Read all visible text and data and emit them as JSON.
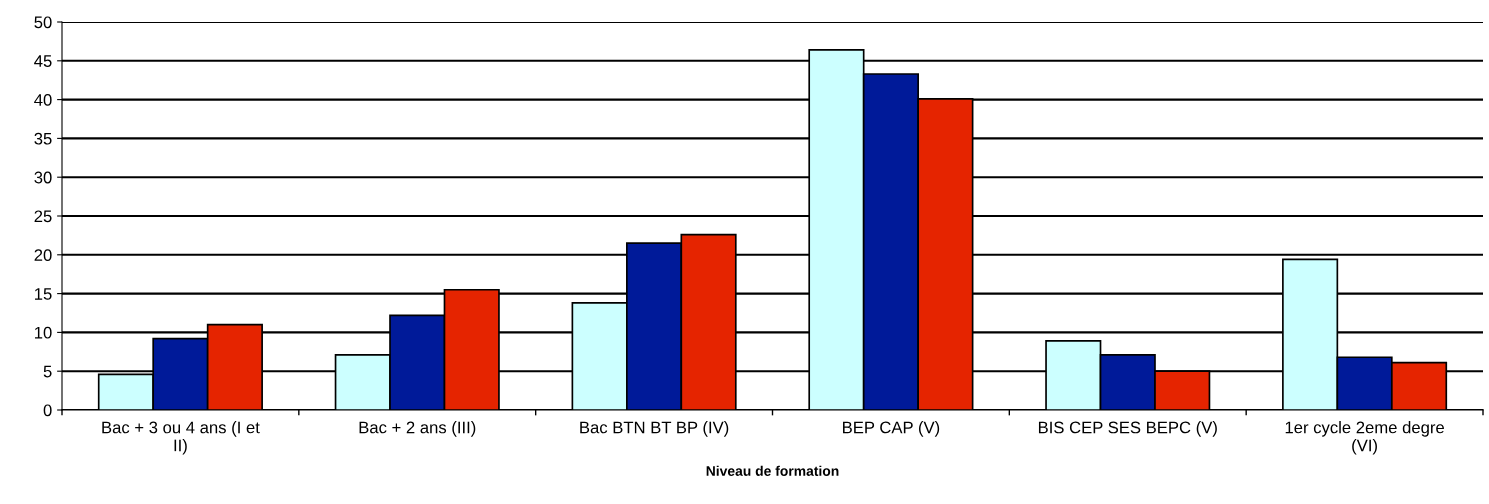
{
  "chart_data": {
    "type": "bar",
    "xlabel": "Niveau de formation",
    "categories": [
      "Bac + 3 ou 4 ans (I et II)",
      "Bac + 2 ans (III)",
      "Bac BTN BT BP (IV)",
      "BEP CAP (V)",
      "BIS CEP SES BEPC (V)",
      "1er cycle 2eme degre (VI)"
    ],
    "series": [
      {
        "color": "#ccffff",
        "values": [
          4.6,
          7.1,
          13.8,
          46.4,
          8.9,
          19.4
        ]
      },
      {
        "color": "#001a99",
        "values": [
          9.2,
          12.2,
          21.5,
          43.3,
          7.1,
          6.8
        ]
      },
      {
        "color": "#e52400",
        "values": [
          11,
          15.5,
          22.6,
          40.1,
          5.0,
          6.1
        ]
      }
    ],
    "ylim": [
      0,
      50
    ],
    "yticks": [
      0,
      5,
      10,
      15,
      20,
      25,
      30,
      35,
      40,
      45,
      50
    ],
    "grid": "y",
    "legend": false
  }
}
